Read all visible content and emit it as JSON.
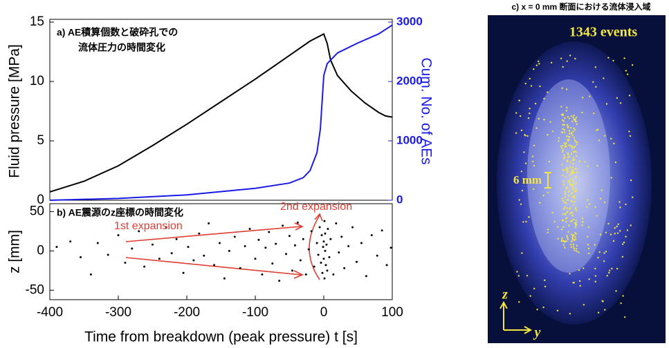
{
  "chart_data": [
    {
      "type": "line",
      "title": [
        "a) AE積算個数と破砕孔での",
        "流体圧力の時間変化"
      ],
      "ylabel": "Fluid pressure [MPa]",
      "y2label": "Cum. No. of AEs",
      "xlim": [
        -400,
        100
      ],
      "ylim": [
        0,
        15
      ],
      "yticks": [
        0,
        5,
        10,
        15
      ],
      "y2lim": [
        0,
        3000
      ],
      "y2ticks": [
        0,
        1000,
        2000,
        3000
      ],
      "series": [
        {
          "color": "#000000",
          "x": [
            -400,
            -350,
            -300,
            -250,
            -200,
            -150,
            -100,
            -50,
            -20,
            0,
            5,
            10,
            20,
            40,
            60,
            80,
            90,
            100
          ],
          "values": [
            0.7,
            1.6,
            2.9,
            4.6,
            6.4,
            8.3,
            10.2,
            12.2,
            13.4,
            14,
            13.2,
            11.8,
            10.5,
            9.2,
            8.2,
            7.4,
            7.1,
            7.0
          ]
        },
        {
          "color": "#1a1ae6",
          "axis": "y2",
          "x": [
            -400,
            -300,
            -200,
            -100,
            -50,
            -30,
            -20,
            -10,
            -5,
            0,
            5,
            20,
            50,
            80,
            100
          ],
          "values": [
            0,
            30,
            90,
            200,
            290,
            380,
            500,
            800,
            1200,
            2100,
            2300,
            2480,
            2650,
            2800,
            2950
          ]
        }
      ]
    },
    {
      "type": "scatter",
      "title": "b) AE震源のz座標の時間変化",
      "xlabel": "Time from breakdown (peak pressure) t [s]",
      "ylabel": "z [mm]",
      "annotations": [
        "1st expansion",
        "2nd expansion"
      ],
      "color": "#000000",
      "xlim": [
        -400,
        100
      ],
      "xticks": [
        -400,
        -300,
        -200,
        -100,
        0,
        100
      ],
      "ylim": [
        -62,
        60
      ],
      "yticks": [
        -50,
        0,
        50
      ],
      "x": [
        -390,
        -370,
        -355,
        -340,
        -330,
        -315,
        -300,
        -290,
        -280,
        -270,
        -262,
        -250,
        -240,
        -230,
        -222,
        -215,
        -205,
        -198,
        -190,
        -182,
        -175,
        -168,
        -160,
        -152,
        -145,
        -138,
        -130,
        -122,
        -115,
        -108,
        -100,
        -95,
        -90,
        -85,
        -80,
        -75,
        -70,
        -65,
        -60,
        -55,
        -50,
        -46,
        -42,
        -38,
        -34,
        -30,
        -26,
        -22,
        -18,
        -14,
        -10,
        -8,
        -6,
        -4,
        -3,
        -2,
        -1,
        0,
        0,
        1,
        1,
        2,
        2,
        3,
        4,
        5,
        6,
        8,
        10,
        14,
        18,
        22,
        26,
        30,
        36,
        42,
        48,
        55,
        62,
        70,
        78,
        85,
        92,
        98
      ],
      "y": [
        5,
        12,
        -8,
        -30,
        10,
        -5,
        20,
        -15,
        3,
        25,
        -20,
        8,
        -10,
        30,
        -3,
        15,
        -28,
        5,
        -12,
        22,
        -6,
        35,
        -18,
        10,
        -35,
        0,
        18,
        -22,
        6,
        28,
        -10,
        14,
        -30,
        4,
        24,
        -16,
        9,
        -38,
        32,
        -4,
        19,
        -25,
        7,
        36,
        -12,
        15,
        -30,
        2,
        25,
        -20,
        10,
        -5,
        30,
        -15,
        20,
        -28,
        5,
        -10,
        12,
        38,
        -35,
        0,
        22,
        -18,
        8,
        -25,
        28,
        -8,
        15,
        -30,
        35,
        -2,
        18,
        -22,
        6,
        30,
        -14,
        10,
        -32,
        20,
        -6,
        26,
        -18,
        4
      ]
    }
  ],
  "image_panel": {
    "title": "c) x = 0 mm 断面における流体浸入域",
    "count_label": "1343 events",
    "scale_label": "6 mm",
    "axis_z": "z",
    "axis_y": "y"
  }
}
